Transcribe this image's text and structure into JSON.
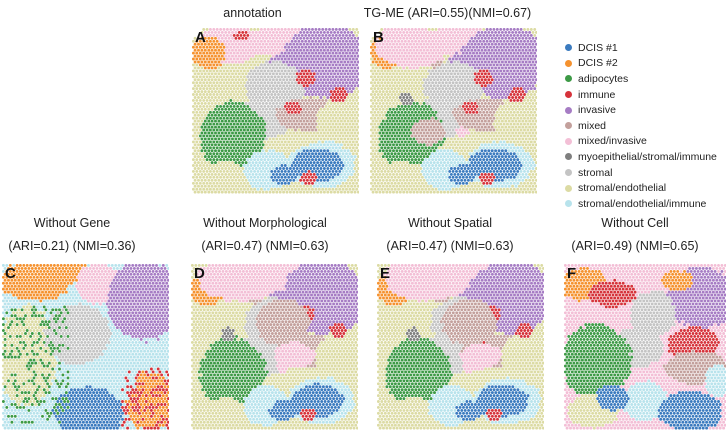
{
  "figure": {
    "panels": [
      {
        "id": "A",
        "label": "A",
        "titles": [
          "annotation"
        ],
        "variant": 0
      },
      {
        "id": "B",
        "label": "B",
        "titles": [
          "TG-ME (ARI=0.55)(NMI=0.67)"
        ],
        "variant": 1
      },
      {
        "id": "C",
        "label": "C",
        "titles": [
          "Without Gene",
          "(ARI=0.21) (NMI=0.36)"
        ],
        "variant": 3
      },
      {
        "id": "D",
        "label": "D",
        "titles": [
          "Without Morphological",
          "(ARI=0.47) (NMI=0.63)"
        ],
        "variant": 2
      },
      {
        "id": "E",
        "label": "E",
        "titles": [
          "Without Spatial",
          "(ARI=0.47) (NMI=0.63)"
        ],
        "variant": 2
      },
      {
        "id": "F",
        "label": "F",
        "titles": [
          "Without Cell",
          "(ARI=0.49) (NMI=0.65)"
        ],
        "variant": 4
      }
    ],
    "legend": [
      {
        "label": "DCIS #1",
        "color": "#3b7bbf"
      },
      {
        "label": "DCIS #2",
        "color": "#f5922f"
      },
      {
        "label": "adipocytes",
        "color": "#3d9a46"
      },
      {
        "label": "immune",
        "color": "#d6333b"
      },
      {
        "label": "invasive",
        "color": "#a67cc4"
      },
      {
        "label": "mixed",
        "color": "#c3a09c"
      },
      {
        "label": "mixed/invasive",
        "color": "#f3bfd6"
      },
      {
        "label": "myoepithelial/stromal/immune",
        "color": "#7f7f7f"
      },
      {
        "label": "stromal",
        "color": "#c4c4c4"
      },
      {
        "label": "stromal/endothelial",
        "color": "#dcdba4"
      },
      {
        "label": "stromal/endothelial/immune",
        "color": "#b8e3ec"
      }
    ]
  }
}
